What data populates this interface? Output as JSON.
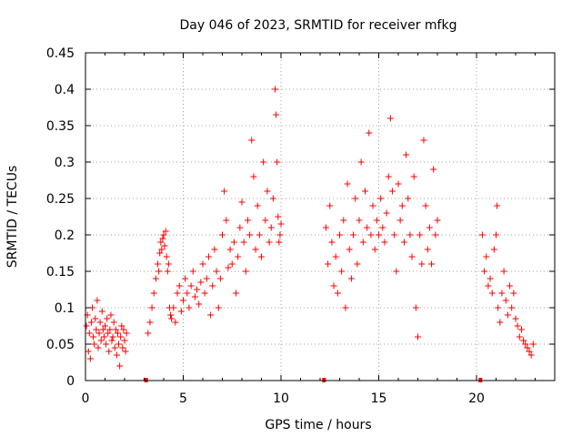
{
  "chart_data": {
    "type": "scatter",
    "title": "Day 046 of 2023, SRMTID for receiver mfkg",
    "xlabel": "GPS time / hours",
    "ylabel": "SRMTID / TECUs",
    "xlim": [
      0,
      24
    ],
    "ylim": [
      0,
      0.45
    ],
    "xticks": [
      0,
      5,
      10,
      15,
      20
    ],
    "yticks": [
      0,
      0.05,
      0.1,
      0.15,
      0.2,
      0.25,
      0.3,
      0.35,
      0.4,
      0.45
    ],
    "xtick_labels": [
      "0",
      "5",
      "10",
      "15",
      "20"
    ],
    "ytick_labels": [
      "0",
      "0.05",
      "0.1",
      "0.15",
      "0.2",
      "0.25",
      "0.3",
      "0.35",
      "0.4",
      "0.45"
    ],
    "grid": true,
    "marker": "+",
    "color": "#ff0000",
    "zero_markers_x": [
      3.1,
      12.2,
      20.2
    ],
    "series": [
      {
        "name": "SRMTID",
        "points": [
          [
            0.05,
            0.075
          ],
          [
            0.1,
            0.09
          ],
          [
            0.15,
            0.04
          ],
          [
            0.2,
            0.065
          ],
          [
            0.25,
            0.03
          ],
          [
            0.3,
            0.08
          ],
          [
            0.35,
            0.1
          ],
          [
            0.4,
            0.06
          ],
          [
            0.45,
            0.05
          ],
          [
            0.5,
            0.085
          ],
          [
            0.55,
            0.07
          ],
          [
            0.6,
            0.11
          ],
          [
            0.65,
            0.045
          ],
          [
            0.7,
            0.065
          ],
          [
            0.75,
            0.08
          ],
          [
            0.8,
            0.055
          ],
          [
            0.85,
            0.095
          ],
          [
            0.9,
            0.07
          ],
          [
            0.95,
            0.06
          ],
          [
            1.0,
            0.075
          ],
          [
            1.05,
            0.05
          ],
          [
            1.1,
            0.085
          ],
          [
            1.15,
            0.065
          ],
          [
            1.2,
            0.04
          ],
          [
            1.25,
            0.07
          ],
          [
            1.3,
            0.09
          ],
          [
            1.35,
            0.055
          ],
          [
            1.4,
            0.06
          ],
          [
            1.45,
            0.08
          ],
          [
            1.5,
            0.045
          ],
          [
            1.55,
            0.07
          ],
          [
            1.6,
            0.035
          ],
          [
            1.65,
            0.065
          ],
          [
            1.7,
            0.05
          ],
          [
            1.75,
            0.02
          ],
          [
            1.8,
            0.06
          ],
          [
            1.85,
            0.075
          ],
          [
            1.9,
            0.045
          ],
          [
            1.95,
            0.07
          ],
          [
            2.0,
            0.055
          ],
          [
            2.05,
            0.04
          ],
          [
            2.1,
            0.065
          ],
          [
            3.2,
            0.065
          ],
          [
            3.3,
            0.08
          ],
          [
            3.4,
            0.1
          ],
          [
            3.5,
            0.12
          ],
          [
            3.6,
            0.14
          ],
          [
            3.7,
            0.16
          ],
          [
            3.75,
            0.15
          ],
          [
            3.8,
            0.175
          ],
          [
            3.85,
            0.19
          ],
          [
            3.9,
            0.18
          ],
          [
            3.95,
            0.195
          ],
          [
            4.0,
            0.2
          ],
          [
            4.05,
            0.185
          ],
          [
            4.1,
            0.205
          ],
          [
            4.15,
            0.17
          ],
          [
            4.2,
            0.15
          ],
          [
            4.25,
            0.16
          ],
          [
            4.3,
            0.1
          ],
          [
            4.35,
            0.09
          ],
          [
            4.4,
            0.085
          ],
          [
            4.5,
            0.1
          ],
          [
            4.6,
            0.08
          ],
          [
            4.7,
            0.12
          ],
          [
            4.8,
            0.13
          ],
          [
            4.9,
            0.095
          ],
          [
            5.0,
            0.11
          ],
          [
            5.1,
            0.14
          ],
          [
            5.2,
            0.12
          ],
          [
            5.3,
            0.1
          ],
          [
            5.4,
            0.13
          ],
          [
            5.5,
            0.15
          ],
          [
            5.6,
            0.115
          ],
          [
            5.7,
            0.125
          ],
          [
            5.8,
            0.105
          ],
          [
            5.9,
            0.135
          ],
          [
            6.0,
            0.16
          ],
          [
            6.1,
            0.12
          ],
          [
            6.2,
            0.14
          ],
          [
            6.3,
            0.17
          ],
          [
            6.4,
            0.09
          ],
          [
            6.5,
            0.13
          ],
          [
            6.6,
            0.18
          ],
          [
            6.7,
            0.15
          ],
          [
            6.8,
            0.1
          ],
          [
            6.9,
            0.14
          ],
          [
            7.0,
            0.2
          ],
          [
            7.1,
            0.26
          ],
          [
            7.2,
            0.22
          ],
          [
            7.3,
            0.155
          ],
          [
            7.4,
            0.18
          ],
          [
            7.5,
            0.16
          ],
          [
            7.6,
            0.19
          ],
          [
            7.7,
            0.12
          ],
          [
            7.8,
            0.17
          ],
          [
            7.9,
            0.21
          ],
          [
            8.0,
            0.245
          ],
          [
            8.1,
            0.19
          ],
          [
            8.2,
            0.15
          ],
          [
            8.3,
            0.22
          ],
          [
            8.4,
            0.2
          ],
          [
            8.5,
            0.33
          ],
          [
            8.6,
            0.28
          ],
          [
            8.7,
            0.18
          ],
          [
            8.8,
            0.24
          ],
          [
            8.9,
            0.2
          ],
          [
            9.0,
            0.17
          ],
          [
            9.1,
            0.3
          ],
          [
            9.2,
            0.22
          ],
          [
            9.3,
            0.26
          ],
          [
            9.4,
            0.19
          ],
          [
            9.5,
            0.21
          ],
          [
            9.6,
            0.25
          ],
          [
            9.7,
            0.4
          ],
          [
            9.75,
            0.365
          ],
          [
            9.8,
            0.3
          ],
          [
            9.85,
            0.225
          ],
          [
            9.9,
            0.19
          ],
          [
            9.95,
            0.2
          ],
          [
            10.0,
            0.215
          ],
          [
            12.3,
            0.21
          ],
          [
            12.4,
            0.16
          ],
          [
            12.5,
            0.24
          ],
          [
            12.6,
            0.19
          ],
          [
            12.7,
            0.13
          ],
          [
            12.8,
            0.17
          ],
          [
            12.9,
            0.12
          ],
          [
            13.0,
            0.2
          ],
          [
            13.1,
            0.15
          ],
          [
            13.2,
            0.22
          ],
          [
            13.3,
            0.1
          ],
          [
            13.4,
            0.27
          ],
          [
            13.5,
            0.18
          ],
          [
            13.6,
            0.14
          ],
          [
            13.7,
            0.2
          ],
          [
            13.8,
            0.25
          ],
          [
            13.9,
            0.16
          ],
          [
            14.0,
            0.22
          ],
          [
            14.1,
            0.3
          ],
          [
            14.2,
            0.19
          ],
          [
            14.3,
            0.26
          ],
          [
            14.4,
            0.21
          ],
          [
            14.5,
            0.34
          ],
          [
            14.6,
            0.2
          ],
          [
            14.7,
            0.24
          ],
          [
            14.8,
            0.18
          ],
          [
            14.9,
            0.22
          ],
          [
            15.0,
            0.2
          ],
          [
            15.1,
            0.25
          ],
          [
            15.2,
            0.21
          ],
          [
            15.3,
            0.19
          ],
          [
            15.4,
            0.23
          ],
          [
            15.5,
            0.28
          ],
          [
            15.6,
            0.36
          ],
          [
            15.7,
            0.26
          ],
          [
            15.8,
            0.2
          ],
          [
            15.9,
            0.15
          ],
          [
            16.0,
            0.27
          ],
          [
            16.1,
            0.22
          ],
          [
            16.2,
            0.24
          ],
          [
            16.3,
            0.19
          ],
          [
            16.4,
            0.31
          ],
          [
            16.5,
            0.25
          ],
          [
            16.6,
            0.2
          ],
          [
            16.7,
            0.17
          ],
          [
            16.8,
            0.28
          ],
          [
            16.9,
            0.1
          ],
          [
            17.0,
            0.06
          ],
          [
            17.1,
            0.2
          ],
          [
            17.2,
            0.16
          ],
          [
            17.3,
            0.33
          ],
          [
            17.4,
            0.24
          ],
          [
            17.5,
            0.18
          ],
          [
            17.6,
            0.21
          ],
          [
            17.7,
            0.16
          ],
          [
            17.8,
            0.29
          ],
          [
            17.9,
            0.2
          ],
          [
            18.0,
            0.22
          ],
          [
            20.3,
            0.2
          ],
          [
            20.4,
            0.15
          ],
          [
            20.5,
            0.17
          ],
          [
            20.6,
            0.13
          ],
          [
            20.7,
            0.14
          ],
          [
            20.8,
            0.12
          ],
          [
            20.9,
            0.18
          ],
          [
            21.0,
            0.2
          ],
          [
            21.05,
            0.24
          ],
          [
            21.1,
            0.1
          ],
          [
            21.2,
            0.08
          ],
          [
            21.3,
            0.12
          ],
          [
            21.4,
            0.15
          ],
          [
            21.5,
            0.11
          ],
          [
            21.6,
            0.09
          ],
          [
            21.7,
            0.13
          ],
          [
            21.8,
            0.1
          ],
          [
            21.9,
            0.12
          ],
          [
            22.0,
            0.085
          ],
          [
            22.1,
            0.075
          ],
          [
            22.2,
            0.06
          ],
          [
            22.3,
            0.07
          ],
          [
            22.4,
            0.055
          ],
          [
            22.5,
            0.05
          ],
          [
            22.6,
            0.045
          ],
          [
            22.7,
            0.04
          ],
          [
            22.8,
            0.035
          ],
          [
            22.9,
            0.05
          ]
        ]
      }
    ]
  }
}
